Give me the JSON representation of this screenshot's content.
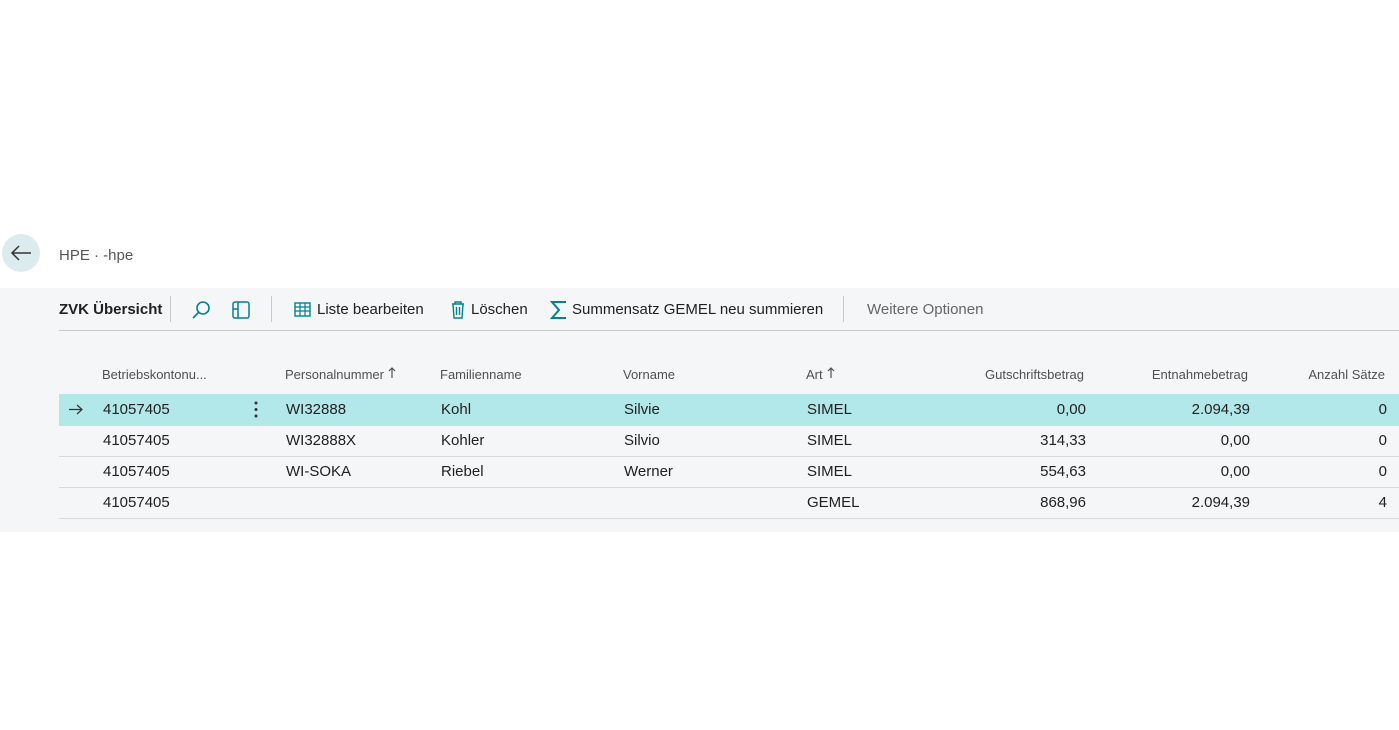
{
  "header": {
    "breadcrumb": "HPE · -hpe"
  },
  "toolbar": {
    "title": "ZVK Übersicht",
    "actions": [
      "Liste bearbeiten",
      "Löschen",
      "Summensatz GEMEL neu summieren"
    ],
    "more": "Weitere Optionen"
  },
  "table": {
    "columns": [
      "Betriebskontonu...",
      "Personalnummer",
      "Familienname",
      "Vorname",
      "Art",
      "Gutschriftsbetrag",
      "Entnahmebetrag",
      "Anzahl Sätze"
    ],
    "rows": [
      [
        "41057405",
        "WI32888",
        "Kohl",
        "Silvie",
        "SIMEL",
        "0,00",
        "2.094,39",
        "0"
      ],
      [
        "41057405",
        "WI32888X",
        "Kohler",
        "Silvio",
        "SIMEL",
        "314,33",
        "0,00",
        "0"
      ],
      [
        "41057405",
        "WI-SOKA",
        "Riebel",
        "Werner",
        "SIMEL",
        "554,63",
        "0,00",
        "0"
      ],
      [
        "41057405",
        null,
        null,
        null,
        "GEMEL",
        "868,96",
        "2.094,39",
        "4"
      ]
    ]
  }
}
